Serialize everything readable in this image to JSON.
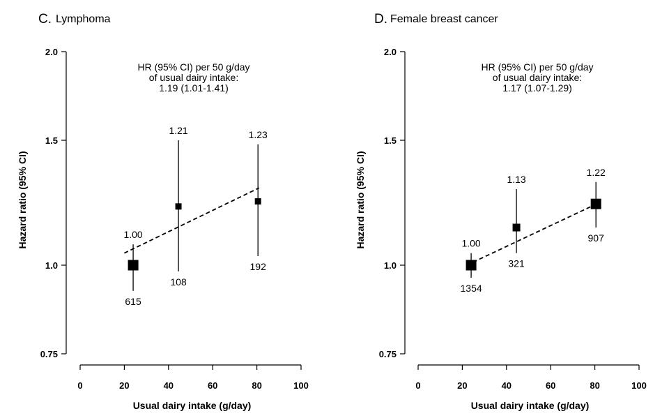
{
  "chart_data": [
    {
      "type": "scatter",
      "panel_letter": "C.",
      "title": "Lymphoma",
      "xlabel": "Usual dairy intake (g/day)",
      "ylabel": "Hazard ratio (95% CI)",
      "xlim": [
        0,
        100
      ],
      "ylim": [
        0.75,
        2.0
      ],
      "y_scale": "log",
      "x_ticks": [
        "0",
        "20",
        "40",
        "60",
        "80",
        "100"
      ],
      "y_ticks": [
        "0.75",
        "1.0",
        "1.5",
        "2.0"
      ],
      "annotation": [
        "HR (95% CI) per 50 g/day",
        "of usual dairy intake:",
        "1.19 (1.01-1.41)"
      ],
      "trend_line": {
        "x": [
          20,
          81
        ],
        "y": [
          1.04,
          1.285
        ]
      },
      "points": [
        {
          "x": 24,
          "hr": 1.0,
          "ci_low": 0.92,
          "ci_high": 1.07,
          "hr_label": "1.00",
          "n_label": "615",
          "size": "large"
        },
        {
          "x": 44.5,
          "hr": 1.21,
          "ci_low": 0.98,
          "ci_high": 1.5,
          "hr_label": "1.21",
          "n_label": "108",
          "size": "small"
        },
        {
          "x": 80.5,
          "hr": 1.23,
          "ci_low": 1.03,
          "ci_high": 1.48,
          "hr_label": "1.23",
          "n_label": "192",
          "size": "small"
        }
      ]
    },
    {
      "type": "scatter",
      "panel_letter": "D.",
      "title": "Female breast cancer",
      "xlabel": "Usual dairy intake (g/day)",
      "ylabel": "Hazard ratio (95% CI)",
      "xlim": [
        0,
        100
      ],
      "ylim": [
        0.75,
        2.0
      ],
      "y_scale": "log",
      "x_ticks": [
        "0",
        "20",
        "40",
        "60",
        "80",
        "100"
      ],
      "y_ticks": [
        "0.75",
        "1.0",
        "1.5",
        "2.0"
      ],
      "annotation": [
        "HR (95% CI) per 50 g/day",
        "of usual dairy intake:",
        "1.17 (1.07-1.29)"
      ],
      "trend_line": {
        "x": [
          22,
          82
        ],
        "y": [
          1.0,
          1.225
        ]
      },
      "points": [
        {
          "x": 24,
          "hr": 1.0,
          "ci_low": 0.96,
          "ci_high": 1.04,
          "hr_label": "1.00",
          "n_label": "1354",
          "size": "large"
        },
        {
          "x": 44.5,
          "hr": 1.13,
          "ci_low": 1.04,
          "ci_high": 1.28,
          "hr_label": "1.13",
          "n_label": "321",
          "size": "medium"
        },
        {
          "x": 80.5,
          "hr": 1.22,
          "ci_low": 1.13,
          "ci_high": 1.31,
          "hr_label": "1.22",
          "n_label": "907",
          "size": "large"
        }
      ]
    }
  ]
}
